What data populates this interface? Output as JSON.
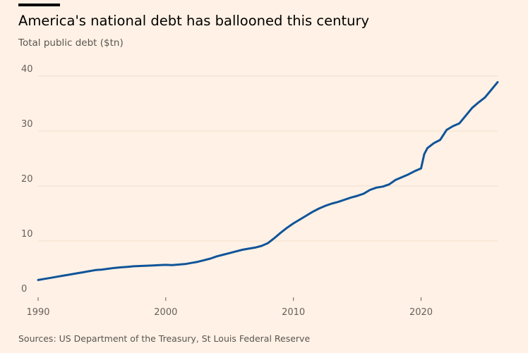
{
  "header": {
    "title": "America's national debt has ballooned this century",
    "subtitle": "Total public debt ($tn)"
  },
  "footer": {
    "source": "Sources: US Department of the Treasury, St Louis Federal Reserve"
  },
  "colors": {
    "background": "#FFF1E5",
    "line": "#0F5499",
    "gridline": "#F2DFCE",
    "axis_text": "#66605C"
  },
  "chart_data": {
    "type": "line",
    "title": "America's national debt has ballooned this century",
    "subtitle": "Total public debt ($tn)",
    "xlabel": "",
    "ylabel": "",
    "xlim": [
      1990,
      2026
    ],
    "ylim": [
      0,
      40
    ],
    "x_ticks": [
      1990,
      2000,
      2010,
      2020
    ],
    "y_ticks": [
      0,
      10,
      20,
      30,
      40
    ],
    "grid": "horizontal",
    "series": [
      {
        "x": [
          1990.0,
          1990.5,
          1991.0,
          1991.5,
          1992.0,
          1992.5,
          1993.0,
          1993.5,
          1994.0,
          1994.5,
          1995.0,
          1995.5,
          1996.0,
          1996.5,
          1997.0,
          1997.5,
          1998.0,
          1998.5,
          1999.0,
          1999.5,
          2000.0,
          2000.5,
          2001.0,
          2001.5,
          2002.0,
          2002.5,
          2003.0,
          2003.5,
          2004.0,
          2004.5,
          2005.0,
          2005.5,
          2006.0,
          2006.5,
          2007.0,
          2007.5,
          2008.0,
          2008.5,
          2009.0,
          2009.5,
          2010.0,
          2010.5,
          2011.0,
          2011.5,
          2012.0,
          2012.5,
          2013.0,
          2013.5,
          2014.0,
          2014.5,
          2015.0,
          2015.5,
          2016.0,
          2016.5,
          2017.0,
          2017.5,
          2018.0,
          2018.5,
          2019.0,
          2019.5,
          2020.0,
          2020.25,
          2020.5,
          2021.0,
          2021.5,
          2022.0,
          2022.5,
          2023.0,
          2023.5,
          2024.0,
          2024.5,
          2025.0,
          2025.5,
          2026.0
        ],
        "values": [
          2.9,
          3.1,
          3.3,
          3.5,
          3.7,
          3.9,
          4.1,
          4.3,
          4.5,
          4.7,
          4.8,
          4.95,
          5.1,
          5.2,
          5.3,
          5.4,
          5.45,
          5.5,
          5.55,
          5.6,
          5.65,
          5.6,
          5.7,
          5.8,
          6.0,
          6.2,
          6.5,
          6.8,
          7.2,
          7.5,
          7.8,
          8.1,
          8.4,
          8.6,
          8.8,
          9.1,
          9.6,
          10.5,
          11.5,
          12.4,
          13.2,
          13.9,
          14.6,
          15.3,
          15.9,
          16.4,
          16.8,
          17.1,
          17.5,
          17.9,
          18.2,
          18.6,
          19.3,
          19.7,
          19.9,
          20.3,
          21.1,
          21.6,
          22.1,
          22.7,
          23.2,
          25.8,
          26.9,
          27.8,
          28.4,
          30.2,
          30.9,
          31.4,
          32.8,
          34.2,
          35.2,
          36.1,
          37.5,
          38.9
        ]
      }
    ]
  }
}
